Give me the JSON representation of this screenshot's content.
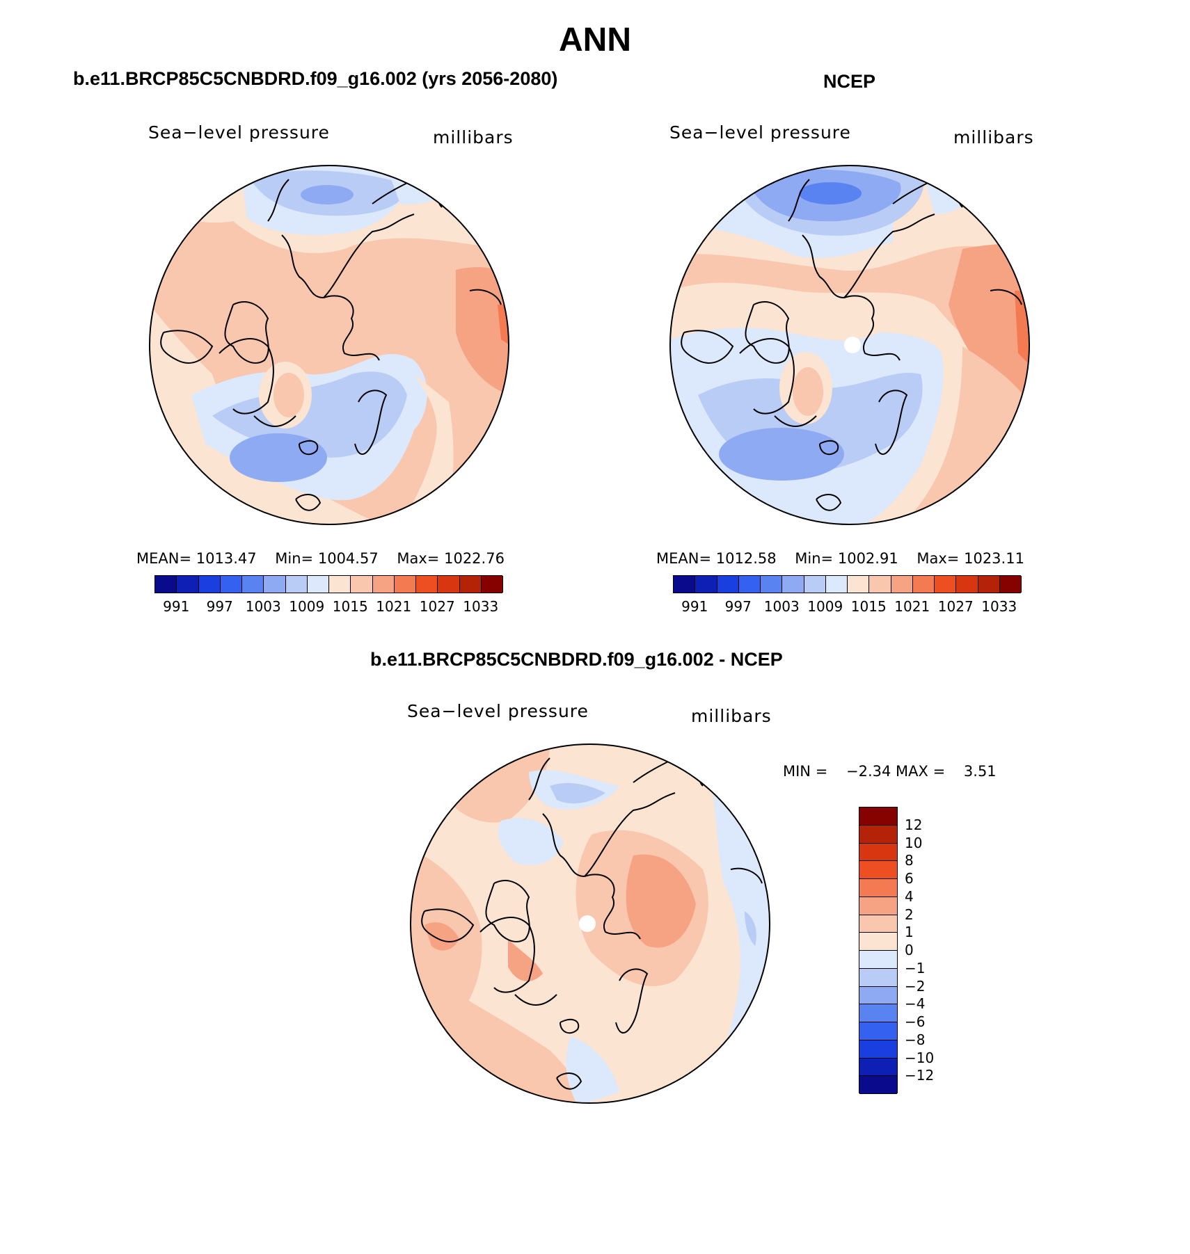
{
  "title": "ANN",
  "panels": [
    {
      "id": "model",
      "heading": "b.e11.BRCP85C5CNBDRD.f09_g16.002 (yrs 2056-2080)",
      "variable": "Sea−level pressure",
      "units": "millibars",
      "stats": {
        "mean_label": "MEAN=",
        "mean": "1013.47",
        "min_label": "Min=",
        "min": "1004.57",
        "max_label": "Max=",
        "max": "1022.76"
      }
    },
    {
      "id": "obs",
      "heading": "NCEP",
      "variable": "Sea−level pressure",
      "units": "millibars",
      "stats": {
        "mean_label": "MEAN=",
        "mean": "1012.58",
        "min_label": "Min=",
        "min": "1002.91",
        "max_label": "Max=",
        "max": "1023.11"
      }
    },
    {
      "id": "diff",
      "heading": "b.e11.BRCP85C5CNBDRD.f09_g16.002 - NCEP",
      "variable": "Sea−level pressure",
      "units": "millibars",
      "stats": {
        "min_label": "MIN =",
        "min": "−2.34",
        "max_label": "MAX =",
        "max": "3.51"
      }
    }
  ],
  "abs_colorbar": {
    "colors": [
      "#0a0a8c",
      "#0d1fb4",
      "#1a3fe0",
      "#3461f0",
      "#5a83f2",
      "#8eaaf3",
      "#b8ccf6",
      "#dce8fb",
      "#fbe4d2",
      "#f9c6ae",
      "#f6a384",
      "#f37a51",
      "#ee4f22",
      "#d83511",
      "#b42208",
      "#850200"
    ],
    "tick_labels": [
      "991",
      "997",
      "1003",
      "1009",
      "1015",
      "1021",
      "1027",
      "1033"
    ]
  },
  "diff_colorbar": {
    "colors_top_to_bottom": [
      "#850200",
      "#b42208",
      "#d83511",
      "#ee4f22",
      "#f37a51",
      "#f6a384",
      "#f9c6ae",
      "#fbe4d2",
      "#dce8fb",
      "#b8ccf6",
      "#8eaaf3",
      "#5a83f2",
      "#3461f0",
      "#1a3fe0",
      "#0d1fb4",
      "#0a0a8c"
    ],
    "tick_labels": [
      "12",
      "10",
      "8",
      "6",
      "4",
      "2",
      "1",
      "0",
      "−1",
      "−2",
      "−4",
      "−6",
      "−8",
      "−10",
      "−12"
    ]
  },
  "fields": {
    "bg_model": "#f9c6ae",
    "bg_obs": "#fbe4d2",
    "bg_diff": "#fbe4d2"
  }
}
